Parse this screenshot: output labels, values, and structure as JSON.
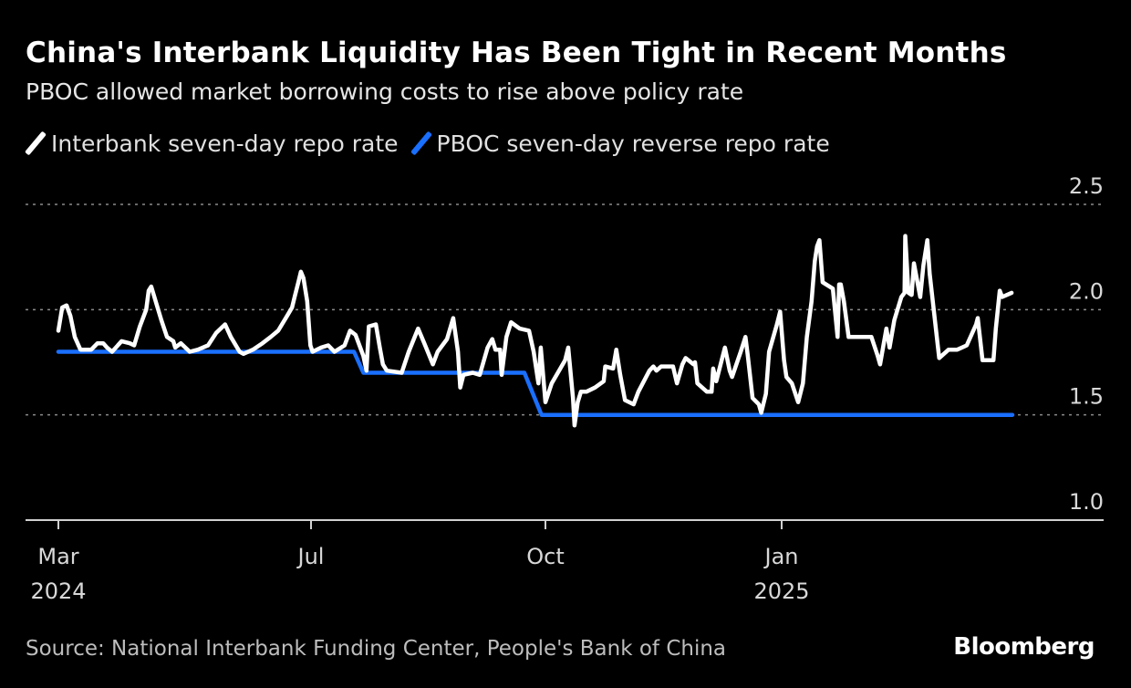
{
  "chart_data": {
    "type": "line",
    "title": "China's Interbank Liquidity Has Been Tight in Recent Months",
    "subtitle": "PBOC allowed market borrowing costs to rise above policy rate",
    "xlabel": "",
    "ylabel": "",
    "x_units": "months since Mar 2024",
    "ylim": [
      1.0,
      2.5
    ],
    "grid": true,
    "legend_position": "top-left",
    "y_ticks": [
      {
        "value": 2.5,
        "label": "2.5"
      },
      {
        "value": 2.0,
        "label": "2.0"
      },
      {
        "value": 1.5,
        "label": "1.5"
      },
      {
        "value": 1.0,
        "label": "1.0"
      }
    ],
    "x_ticks": [
      {
        "value": 0,
        "label": "Mar",
        "year": "2024"
      },
      {
        "value": 4,
        "label": "Jul",
        "year": ""
      },
      {
        "value": 7,
        "label": "Oct",
        "year": ""
      },
      {
        "value": 10,
        "label": "Jan",
        "year": "2025"
      }
    ],
    "series": [
      {
        "name": "Interbank seven-day repo rate",
        "color": "#ffffff",
        "points": [
          [
            0,
            1.9
          ],
          [
            0.06,
            2.01
          ],
          [
            0.13,
            2.02
          ],
          [
            0.19,
            1.97
          ],
          [
            0.26,
            1.87
          ],
          [
            0.35,
            1.81
          ],
          [
            0.52,
            1.81
          ],
          [
            0.62,
            1.84
          ],
          [
            0.71,
            1.84
          ],
          [
            0.77,
            1.82
          ],
          [
            0.85,
            1.8
          ],
          [
            1.0,
            1.85
          ],
          [
            1.13,
            1.84
          ],
          [
            1.2,
            1.83
          ],
          [
            1.29,
            1.92
          ],
          [
            1.39,
            2.0
          ],
          [
            1.43,
            2.09
          ],
          [
            1.47,
            2.11
          ],
          [
            1.63,
            1.95
          ],
          [
            1.72,
            1.87
          ],
          [
            1.82,
            1.85
          ],
          [
            1.85,
            1.82
          ],
          [
            1.94,
            1.84
          ],
          [
            2.08,
            1.8
          ],
          [
            2.21,
            1.81
          ],
          [
            2.37,
            1.83
          ],
          [
            2.5,
            1.89
          ],
          [
            2.64,
            1.93
          ],
          [
            2.73,
            1.87
          ],
          [
            2.87,
            1.8
          ],
          [
            2.93,
            1.79
          ],
          [
            3.08,
            1.81
          ],
          [
            3.23,
            1.84
          ],
          [
            3.36,
            1.87
          ],
          [
            3.48,
            1.9
          ],
          [
            3.62,
            1.97
          ],
          [
            3.7,
            2.01
          ],
          [
            3.74,
            2.06
          ],
          [
            3.8,
            2.13
          ],
          [
            3.84,
            2.18
          ],
          [
            3.88,
            2.15
          ],
          [
            3.94,
            2.04
          ],
          [
            3.99,
            1.83
          ],
          [
            4.02,
            1.8
          ],
          [
            4.13,
            1.82
          ],
          [
            4.22,
            1.83
          ],
          [
            4.3,
            1.8
          ],
          [
            4.43,
            1.83
          ],
          [
            4.5,
            1.9
          ],
          [
            4.57,
            1.88
          ],
          [
            4.67,
            1.78
          ],
          [
            4.71,
            1.71
          ],
          [
            4.74,
            1.92
          ],
          [
            4.83,
            1.93
          ],
          [
            4.88,
            1.82
          ],
          [
            4.92,
            1.74
          ],
          [
            4.97,
            1.71
          ],
          [
            5.16,
            1.7
          ],
          [
            5.25,
            1.8
          ],
          [
            5.37,
            1.91
          ],
          [
            5.45,
            1.84
          ],
          [
            5.56,
            1.74
          ],
          [
            5.62,
            1.8
          ],
          [
            5.74,
            1.86
          ],
          [
            5.82,
            1.96
          ],
          [
            5.88,
            1.8
          ],
          [
            5.91,
            1.63
          ],
          [
            5.95,
            1.69
          ],
          [
            6.07,
            1.7
          ],
          [
            6.16,
            1.69
          ],
          [
            6.26,
            1.82
          ],
          [
            6.32,
            1.86
          ],
          [
            6.36,
            1.81
          ],
          [
            6.42,
            1.81
          ],
          [
            6.44,
            1.69
          ],
          [
            6.5,
            1.87
          ],
          [
            6.56,
            1.94
          ],
          [
            6.67,
            1.91
          ],
          [
            6.79,
            1.9
          ],
          [
            6.85,
            1.8
          ],
          [
            6.91,
            1.65
          ],
          [
            6.94,
            1.82
          ],
          [
            7.0,
            1.56
          ],
          [
            7.08,
            1.65
          ],
          [
            7.25,
            1.76
          ],
          [
            7.29,
            1.82
          ],
          [
            7.35,
            1.58
          ],
          [
            7.37,
            1.45
          ],
          [
            7.41,
            1.56
          ],
          [
            7.45,
            1.61
          ],
          [
            7.52,
            1.61
          ],
          [
            7.63,
            1.63
          ],
          [
            7.74,
            1.66
          ],
          [
            7.76,
            1.73
          ],
          [
            7.86,
            1.72
          ],
          [
            7.9,
            1.81
          ],
          [
            7.95,
            1.69
          ],
          [
            8.01,
            1.57
          ],
          [
            8.12,
            1.55
          ],
          [
            8.18,
            1.61
          ],
          [
            8.32,
            1.71
          ],
          [
            8.37,
            1.73
          ],
          [
            8.41,
            1.71
          ],
          [
            8.47,
            1.73
          ],
          [
            8.62,
            1.73
          ],
          [
            8.67,
            1.65
          ],
          [
            8.74,
            1.74
          ],
          [
            8.78,
            1.77
          ],
          [
            8.88,
            1.74
          ],
          [
            8.9,
            1.75
          ],
          [
            8.93,
            1.65
          ],
          [
            9.05,
            1.61
          ],
          [
            9.11,
            1.61
          ],
          [
            9.13,
            1.72
          ],
          [
            9.17,
            1.66
          ],
          [
            9.28,
            1.82
          ],
          [
            9.34,
            1.71
          ],
          [
            9.37,
            1.68
          ],
          [
            9.48,
            1.8
          ],
          [
            9.54,
            1.87
          ],
          [
            9.57,
            1.78
          ],
          [
            9.63,
            1.58
          ],
          [
            9.71,
            1.55
          ],
          [
            9.74,
            1.51
          ],
          [
            9.8,
            1.6
          ],
          [
            9.84,
            1.8
          ],
          [
            9.94,
            1.93
          ],
          [
            9.98,
            1.99
          ],
          [
            10.03,
            1.76
          ],
          [
            10.06,
            1.68
          ],
          [
            10.13,
            1.65
          ],
          [
            10.21,
            1.56
          ],
          [
            10.27,
            1.65
          ],
          [
            10.32,
            1.87
          ],
          [
            10.38,
            2.04
          ],
          [
            10.42,
            2.23
          ],
          [
            10.45,
            2.3
          ],
          [
            10.48,
            2.33
          ],
          [
            10.52,
            2.13
          ],
          [
            10.65,
            2.1
          ],
          [
            10.71,
            1.87
          ],
          [
            10.73,
            2.12
          ],
          [
            10.75,
            2.12
          ],
          [
            10.79,
            2.04
          ],
          [
            10.85,
            1.87
          ],
          [
            11.14,
            1.87
          ],
          [
            11.22,
            1.78
          ],
          [
            11.25,
            1.74
          ],
          [
            11.33,
            1.91
          ],
          [
            11.37,
            1.82
          ],
          [
            11.43,
            1.95
          ],
          [
            11.52,
            2.06
          ],
          [
            11.56,
            2.08
          ],
          [
            11.57,
            2.35
          ],
          [
            11.61,
            2.08
          ],
          [
            11.65,
            2.07
          ],
          [
            11.68,
            2.22
          ],
          [
            11.76,
            2.06
          ],
          [
            11.8,
            2.21
          ],
          [
            11.85,
            2.33
          ],
          [
            11.88,
            2.17
          ],
          [
            12.0,
            1.77
          ],
          [
            12.12,
            1.81
          ],
          [
            12.23,
            1.81
          ],
          [
            12.35,
            1.83
          ],
          [
            12.47,
            1.93
          ],
          [
            12.49,
            1.96
          ],
          [
            12.55,
            1.76
          ],
          [
            12.69,
            1.76
          ],
          [
            12.72,
            1.91
          ],
          [
            12.77,
            2.09
          ],
          [
            12.8,
            2.06
          ],
          [
            12.92,
            2.08
          ]
        ]
      },
      {
        "name": "PBOC seven-day reverse repo rate",
        "color": "#1a6fff",
        "points": [
          [
            0,
            1.8
          ],
          [
            4.55,
            1.8
          ],
          [
            4.67,
            1.7
          ],
          [
            6.73,
            1.7
          ],
          [
            6.95,
            1.5
          ],
          [
            12.93,
            1.5
          ]
        ]
      }
    ],
    "source": "Source: National Interbank Funding Center, People's Bank of China"
  },
  "brand": "Bloomberg"
}
